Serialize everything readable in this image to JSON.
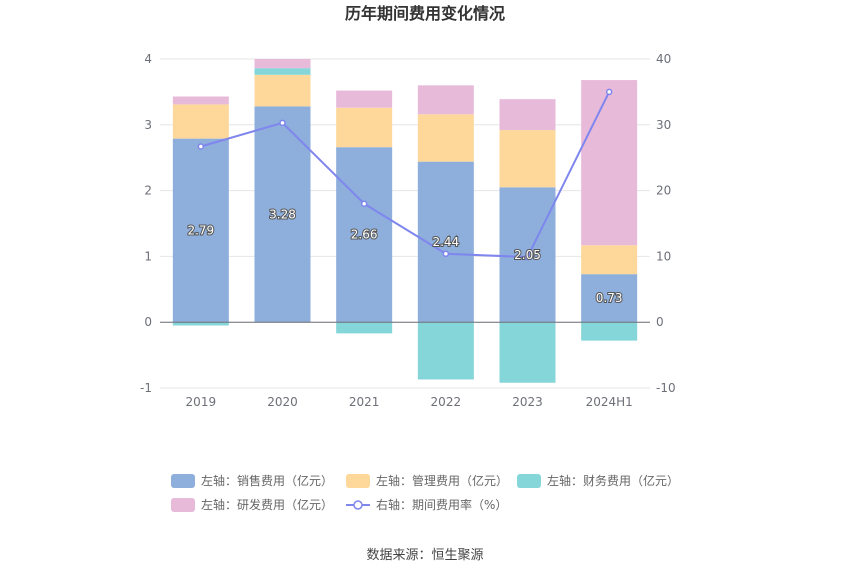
{
  "chart_data": {
    "type": "bar",
    "title": "历年期间费用变化情况",
    "categories": [
      "2019",
      "2020",
      "2021",
      "2022",
      "2023",
      "2024H1"
    ],
    "left_axis": {
      "ylim": [
        -1,
        4
      ],
      "ticks": [
        "-1",
        "0",
        "1",
        "2",
        "3",
        "4"
      ]
    },
    "right_axis": {
      "ylim": [
        -10,
        40
      ],
      "ticks": [
        "-10",
        "0",
        "10",
        "20",
        "30",
        "40"
      ]
    },
    "series": [
      {
        "name": "左轴：销售费用（亿元）",
        "kind": "bar",
        "axis": "left",
        "color": "#8eaedb",
        "values": [
          2.79,
          3.28,
          2.66,
          2.44,
          2.05,
          0.73
        ],
        "labels": [
          "2.79",
          "3.28",
          "2.66",
          "2.44",
          "2.05",
          "0.73"
        ]
      },
      {
        "name": "左轴：管理费用（亿元）",
        "kind": "bar",
        "axis": "left",
        "color": "#fdd89a",
        "values": [
          0.52,
          0.48,
          0.6,
          0.72,
          0.87,
          0.44
        ]
      },
      {
        "name": "左轴：财务费用（亿元）",
        "kind": "bar",
        "axis": "left",
        "color": "#84d6d8",
        "values": [
          -0.05,
          0.1,
          -0.17,
          -0.87,
          -0.92,
          -0.28
        ]
      },
      {
        "name": "左轴：研发费用（亿元）",
        "kind": "bar",
        "axis": "left",
        "color": "#e8bada",
        "values": [
          0.12,
          0.14,
          0.26,
          0.44,
          0.47,
          2.51
        ]
      },
      {
        "name": "右轴：期间费用率（%）",
        "kind": "line",
        "axis": "right",
        "color": "#7f86ee",
        "values": [
          26.7,
          30.3,
          18.0,
          10.4,
          9.9,
          35.0
        ]
      }
    ],
    "legend_position": "bottom",
    "grid": true
  },
  "footer": {
    "source": "数据来源：恒生聚源"
  }
}
